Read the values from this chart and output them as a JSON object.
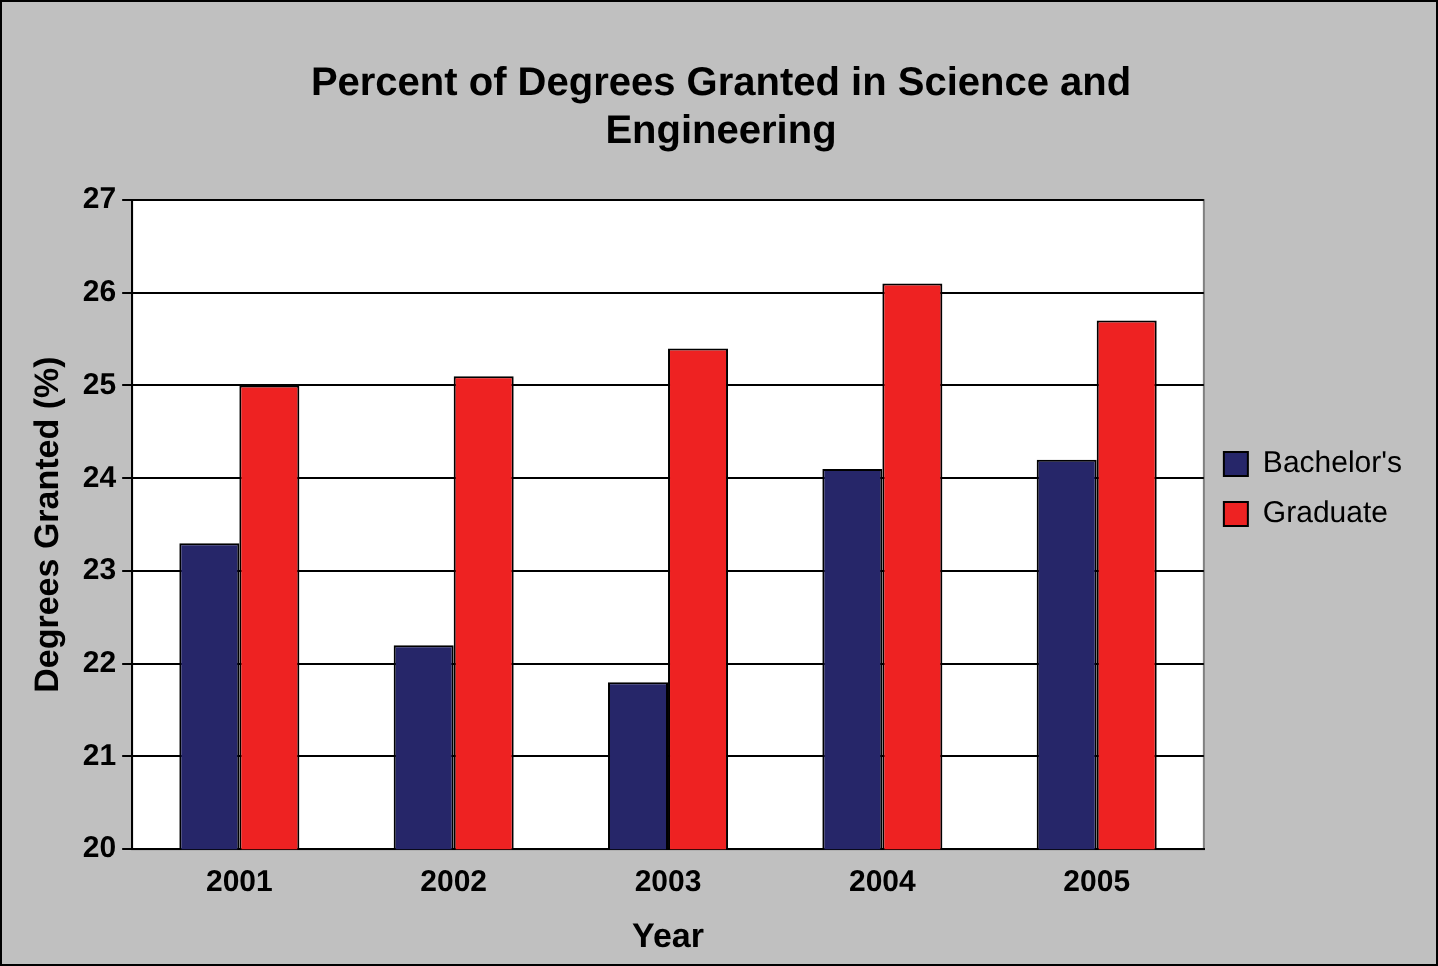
{
  "chart_data": {
    "type": "bar",
    "title": "Percent of Degrees Granted in Science and Engineering",
    "xlabel": "Year",
    "ylabel": "Degrees Granted (%)",
    "categories": [
      "2001",
      "2002",
      "2003",
      "2004",
      "2005"
    ],
    "series": [
      {
        "name": "Bachelor's",
        "color": "#262669",
        "values": [
          23.3,
          22.2,
          21.8,
          24.1,
          24.2
        ]
      },
      {
        "name": "Graduate",
        "color": "#ee2222",
        "values": [
          25.0,
          25.1,
          25.4,
          26.1,
          25.7
        ]
      }
    ],
    "ylim": [
      20,
      27
    ],
    "yticks": [
      20,
      21,
      22,
      23,
      24,
      25,
      26,
      27
    ],
    "grid": "y",
    "legend": "right"
  }
}
